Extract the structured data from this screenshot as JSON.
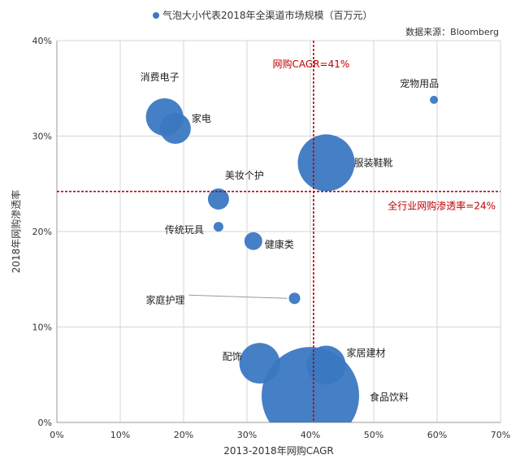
{
  "chart_data": {
    "type": "scatter",
    "legend": {
      "label": "气泡大小代表2018年全渠道市场规模（百万元）",
      "position": "top-center",
      "color": "#3b78c2"
    },
    "source": "数据来源：Bloomberg",
    "xlabel": "2013-2018年网购CAGR",
    "ylabel": "2018年网购渗透率",
    "xlim": [
      0,
      70
    ],
    "ylim": [
      0,
      40
    ],
    "x_ticks": [
      "0%",
      "10%",
      "20%",
      "30%",
      "40%",
      "50%",
      "60%",
      "70%"
    ],
    "y_ticks": [
      "0%",
      "10%",
      "20%",
      "30%",
      "40%"
    ],
    "grid": true,
    "bubble_color": "#3b78c2",
    "reference_color": "#c00000",
    "reference_lines": [
      {
        "orientation": "vertical",
        "value": 40.5,
        "label": "网购CAGR=41%"
      },
      {
        "orientation": "horizontal",
        "value": 24.2,
        "label": "全行业网购渗透率=24%"
      }
    ],
    "points": [
      {
        "label": "消费电子",
        "x": 17.0,
        "y": 32.0
      },
      {
        "label": "家电",
        "x": 18.7,
        "y": 30.8
      },
      {
        "label": "宠物用品",
        "x": 59.5,
        "y": 33.8
      },
      {
        "label": "服装鞋靴",
        "x": 42.5,
        "y": 27.2
      },
      {
        "label": "美妆个护",
        "x": 25.5,
        "y": 23.4
      },
      {
        "label": "传统玩具",
        "x": 25.5,
        "y": 20.5
      },
      {
        "label": "健康类",
        "x": 31.0,
        "y": 19.0
      },
      {
        "label": "家庭护理",
        "x": 37.5,
        "y": 13.0
      },
      {
        "label": "配饰",
        "x": 32.0,
        "y": 6.2
      },
      {
        "label": "家居建材",
        "x": 42.5,
        "y": 6.0
      },
      {
        "label": "食品饮料",
        "x": 40.0,
        "y": 2.8
      }
    ]
  }
}
